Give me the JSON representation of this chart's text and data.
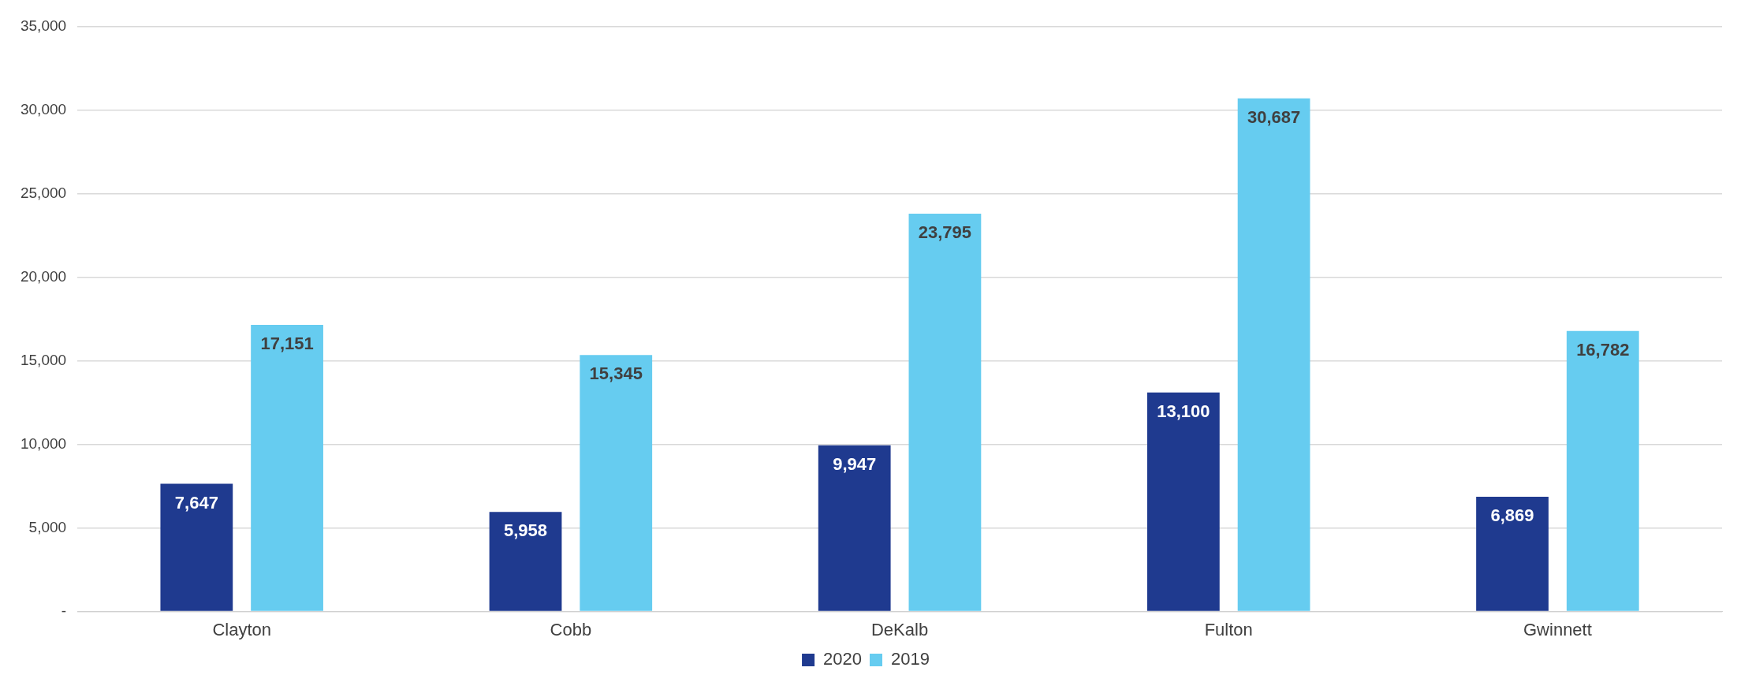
{
  "chart_data": {
    "type": "bar",
    "categories": [
      "Clayton",
      "Cobb",
      "DeKalb",
      "Fulton",
      "Gwinnett"
    ],
    "series": [
      {
        "name": "2020",
        "color": "#1f3a8f",
        "values": [
          7647,
          5958,
          9947,
          13100,
          6869
        ],
        "value_labels": [
          "7,647",
          "5,958",
          "9,947",
          "13,100",
          "6,869"
        ]
      },
      {
        "name": "2019",
        "color": "#66ccf0",
        "values": [
          17151,
          15345,
          23795,
          30687,
          16782
        ],
        "value_labels": [
          "17,151",
          "15,345",
          "23,795",
          "30,687",
          "16,782"
        ]
      }
    ],
    "ylim": [
      0,
      35000
    ],
    "yticks": [
      {
        "value": 0,
        "label": "-"
      },
      {
        "value": 5000,
        "label": "5,000"
      },
      {
        "value": 10000,
        "label": "10,000"
      },
      {
        "value": 15000,
        "label": "15,000"
      },
      {
        "value": 20000,
        "label": "20,000"
      },
      {
        "value": 25000,
        "label": "25,000"
      },
      {
        "value": 30000,
        "label": "30,000"
      },
      {
        "value": 35000,
        "label": "35,000"
      }
    ],
    "grid": "y",
    "legend": "bottom"
  }
}
